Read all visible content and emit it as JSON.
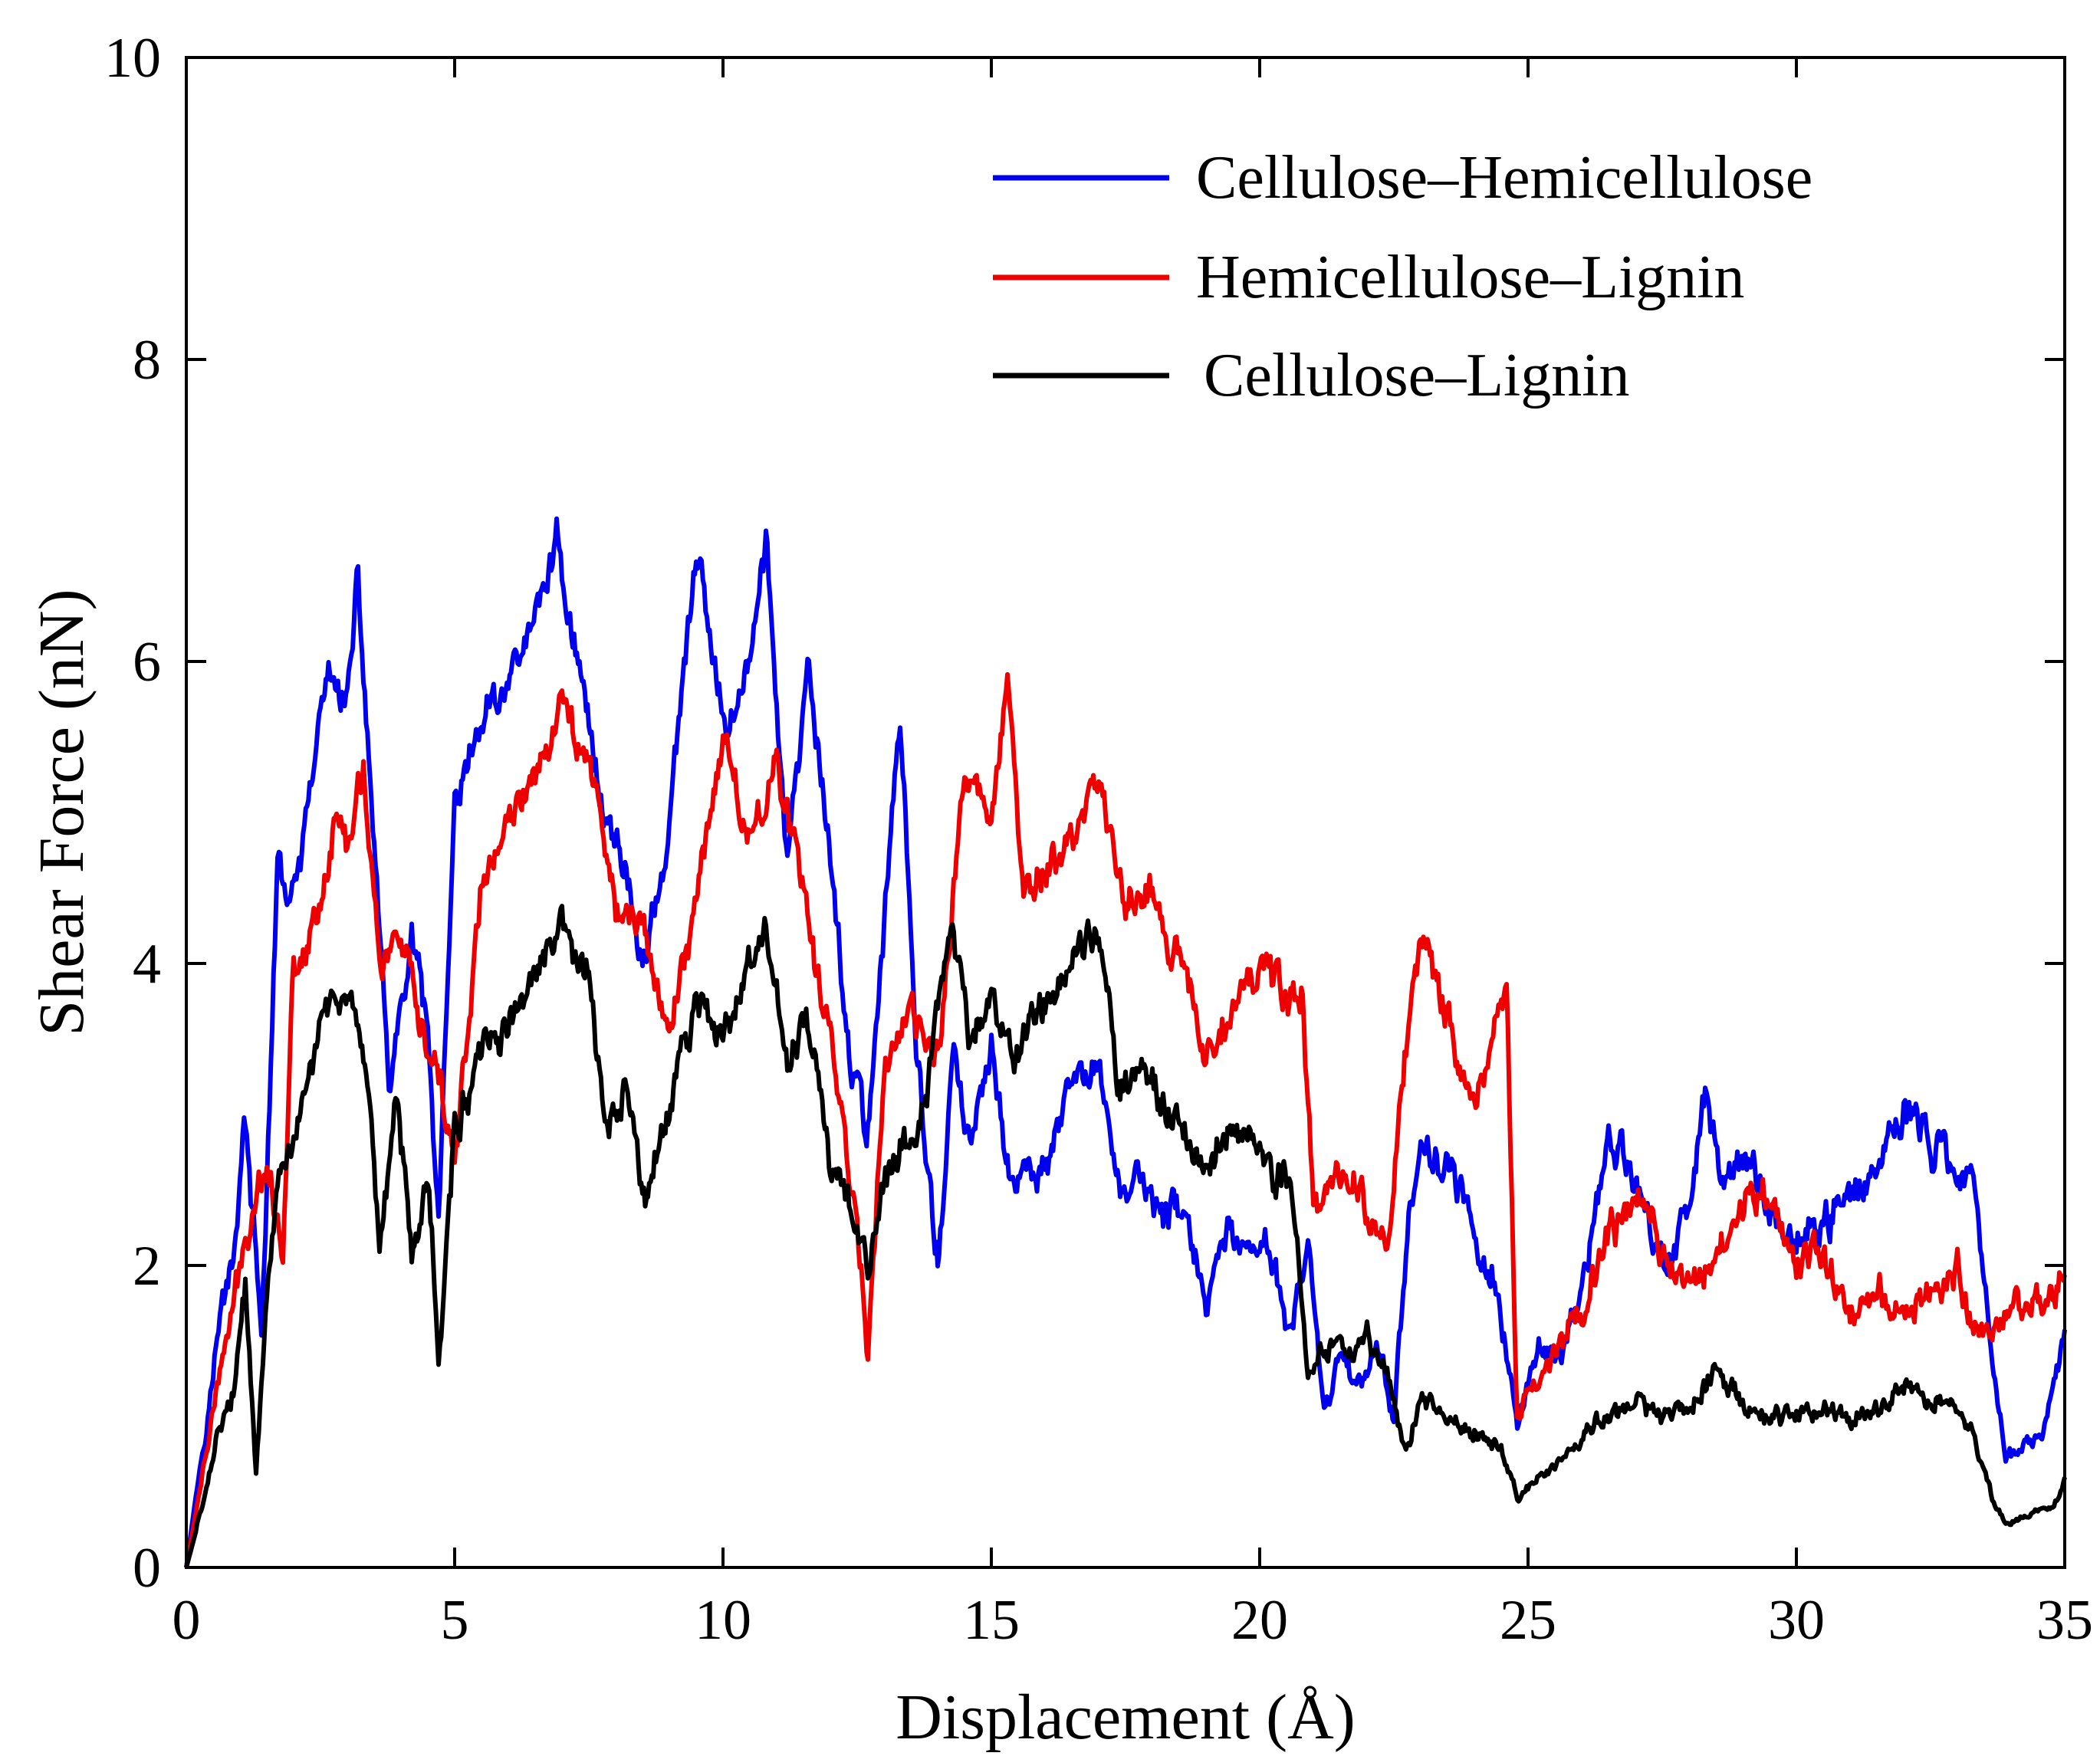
{
  "chart_data": {
    "type": "line",
    "title": "",
    "xlabel": "Displacement (Å)",
    "ylabel": "Shear Force (nN)",
    "xlim": [
      0,
      35
    ],
    "ylim": [
      0,
      10
    ],
    "xticks": [
      0,
      5,
      10,
      15,
      20,
      25,
      30,
      35
    ],
    "yticks": [
      0,
      2,
      4,
      6,
      8,
      10
    ],
    "xtick_labels": [
      "0",
      "5",
      "10",
      "15",
      "20",
      "25",
      "30",
      "35"
    ],
    "ytick_labels": [
      "0",
      "2",
      "4",
      "6",
      "8",
      "10"
    ],
    "grid": false,
    "legend": "top-right",
    "noise_amplitude": 0.18,
    "series": [
      {
        "name": "Cellulose–Hemicellulose",
        "color": "#0000ee",
        "x": [
          0,
          0.3,
          0.6,
          0.9,
          1.1,
          1.4,
          1.7,
          2.0,
          2.3,
          2.6,
          3.0,
          3.2,
          3.5,
          3.8,
          4.2,
          4.5,
          4.7,
          5.0,
          5.5,
          6.0,
          6.5,
          6.9,
          7.3,
          7.8,
          8.2,
          8.5,
          9.0,
          9.5,
          10.0,
          10.5,
          10.8,
          11.2,
          11.6,
          12.0,
          12.4,
          12.7,
          13.0,
          13.3,
          13.6,
          14.0,
          14.3,
          14.6,
          15.0,
          15.4,
          15.8,
          16.2,
          16.6,
          17.0,
          17.4,
          17.8,
          18.2,
          18.6,
          19.0,
          19.4,
          19.8,
          20.2,
          20.6,
          20.9,
          21.2,
          21.5,
          21.8,
          22.2,
          22.5,
          22.8,
          23.2,
          23.6,
          24.0,
          24.4,
          24.8,
          25.2,
          25.6,
          26.0,
          26.5,
          27.0,
          27.5,
          28.0,
          28.3,
          28.7,
          29.2,
          29.8,
          30.4,
          31.0,
          31.6,
          32.0,
          32.5,
          33.0,
          33.3,
          33.6,
          33.9,
          34.2,
          34.6,
          35.0
        ],
        "y": [
          0.0,
          0.8,
          1.6,
          2.2,
          3.0,
          1.5,
          4.6,
          4.4,
          5.1,
          5.9,
          5.7,
          6.5,
          4.8,
          3.1,
          4.2,
          3.5,
          2.3,
          5.0,
          5.6,
          5.9,
          6.3,
          6.8,
          6.0,
          5.0,
          4.6,
          4.0,
          4.9,
          6.7,
          5.6,
          6.0,
          6.8,
          4.6,
          5.9,
          4.7,
          3.3,
          2.9,
          4.3,
          5.7,
          3.4,
          2.0,
          3.4,
          2.8,
          3.4,
          2.5,
          2.6,
          2.8,
          3.2,
          3.3,
          2.5,
          2.6,
          2.3,
          2.4,
          1.7,
          2.2,
          2.0,
          2.1,
          1.6,
          2.1,
          1.0,
          1.4,
          1.2,
          1.5,
          1.0,
          2.5,
          2.8,
          2.6,
          2.2,
          1.9,
          0.9,
          1.5,
          1.4,
          1.8,
          2.8,
          2.6,
          2.0,
          2.4,
          3.1,
          2.6,
          2.7,
          2.2,
          2.2,
          2.5,
          2.7,
          3.1,
          2.8,
          2.6,
          2.6,
          1.6,
          0.7,
          0.8,
          0.9,
          1.5
        ]
      },
      {
        "name": "Hemicellulose–Lignin",
        "color": "#ee0000",
        "x": [
          0,
          0.3,
          0.6,
          0.9,
          1.2,
          1.5,
          1.8,
          2.0,
          2.4,
          2.8,
          3.0,
          3.3,
          3.6,
          4.0,
          4.3,
          4.7,
          5.0,
          5.5,
          6.0,
          6.5,
          7.0,
          7.5,
          8.0,
          8.5,
          9.0,
          9.5,
          10.0,
          10.5,
          11.0,
          11.5,
          12.0,
          12.5,
          12.7,
          13.0,
          13.5,
          14.0,
          14.5,
          15.0,
          15.3,
          15.6,
          16.0,
          16.5,
          17.0,
          17.5,
          18.0,
          18.5,
          19.0,
          19.5,
          20.0,
          20.5,
          20.8,
          21.0,
          21.5,
          22.0,
          22.4,
          22.7,
          23.0,
          23.3,
          23.6,
          24.0,
          24.4,
          24.6,
          24.8,
          25.2,
          25.6,
          26.0,
          26.5,
          27.0,
          27.5,
          28.0,
          28.5,
          29.0,
          29.5,
          30.0,
          30.5,
          31.0,
          31.5,
          32.0,
          32.5,
          33.0,
          33.3,
          33.6,
          34.0,
          34.5,
          35.0
        ],
        "y": [
          0.0,
          0.6,
          1.2,
          1.8,
          2.3,
          2.7,
          2.1,
          4.0,
          4.3,
          5.0,
          4.8,
          5.3,
          4.0,
          4.2,
          3.6,
          3.2,
          2.7,
          4.5,
          4.9,
          5.3,
          5.7,
          5.4,
          4.4,
          4.2,
          3.6,
          4.4,
          5.6,
          4.8,
          5.4,
          4.4,
          3.5,
          2.3,
          1.4,
          3.4,
          3.6,
          3.4,
          5.2,
          5.0,
          5.9,
          4.4,
          4.6,
          4.8,
          5.3,
          4.4,
          4.5,
          4.0,
          3.4,
          3.8,
          4.0,
          3.7,
          3.8,
          2.4,
          2.6,
          2.4,
          2.1,
          3.4,
          4.2,
          3.8,
          3.5,
          3.1,
          3.6,
          3.8,
          1.0,
          1.2,
          1.5,
          1.7,
          2.2,
          2.4,
          2.1,
          1.9,
          2.1,
          2.4,
          2.5,
          2.0,
          2.1,
          1.7,
          1.8,
          1.7,
          1.8,
          2.0,
          1.6,
          1.6,
          1.8,
          1.7,
          1.9
        ]
      },
      {
        "name": "Cellulose–Lignin",
        "color": "#000000",
        "x": [
          0,
          0.3,
          0.6,
          0.9,
          1.1,
          1.3,
          1.6,
          1.8,
          2.1,
          2.5,
          2.8,
          3.1,
          3.4,
          3.6,
          3.9,
          4.2,
          4.5,
          4.7,
          5.0,
          5.5,
          6.0,
          6.5,
          7.0,
          7.5,
          7.8,
          8.2,
          8.5,
          9.0,
          9.5,
          10.0,
          10.5,
          10.8,
          11.2,
          11.6,
          12.0,
          12.4,
          12.7,
          13.0,
          13.4,
          13.8,
          14.2,
          14.6,
          15.0,
          15.4,
          15.8,
          16.2,
          16.6,
          17.0,
          17.4,
          17.8,
          18.2,
          18.6,
          19.0,
          19.4,
          19.8,
          20.2,
          20.6,
          20.9,
          21.2,
          21.6,
          22.0,
          22.4,
          22.7,
          23.0,
          23.5,
          24.0,
          24.5,
          24.8,
          25.2,
          25.6,
          26.0,
          26.5,
          27.0,
          27.5,
          28.0,
          28.5,
          29.0,
          29.5,
          30.0,
          30.5,
          31.0,
          31.5,
          32.0,
          32.5,
          33.0,
          33.3,
          33.7,
          34.0,
          34.4,
          34.8,
          35.0
        ],
        "y": [
          0.0,
          0.4,
          0.9,
          1.2,
          1.9,
          0.6,
          2.3,
          2.6,
          2.9,
          3.6,
          3.8,
          3.7,
          3.0,
          2.1,
          3.1,
          2.1,
          2.6,
          1.4,
          2.9,
          3.4,
          3.6,
          3.9,
          4.2,
          3.9,
          2.8,
          3.2,
          2.4,
          3.0,
          3.8,
          3.5,
          4.0,
          4.2,
          3.3,
          3.6,
          2.6,
          2.4,
          2.0,
          2.6,
          2.9,
          3.1,
          4.2,
          3.5,
          3.8,
          3.4,
          3.6,
          3.8,
          4.1,
          4.3,
          3.2,
          3.3,
          3.1,
          2.9,
          2.6,
          2.9,
          3.0,
          2.6,
          2.5,
          1.2,
          1.5,
          1.4,
          1.6,
          1.2,
          0.8,
          1.1,
          1.0,
          0.9,
          0.8,
          0.45,
          0.6,
          0.7,
          0.85,
          1.0,
          1.1,
          1.0,
          1.1,
          1.3,
          1.1,
          1.0,
          1.0,
          1.1,
          1.0,
          1.1,
          1.2,
          1.1,
          1.1,
          0.9,
          0.4,
          0.3,
          0.35,
          0.4,
          0.6
        ]
      }
    ]
  }
}
